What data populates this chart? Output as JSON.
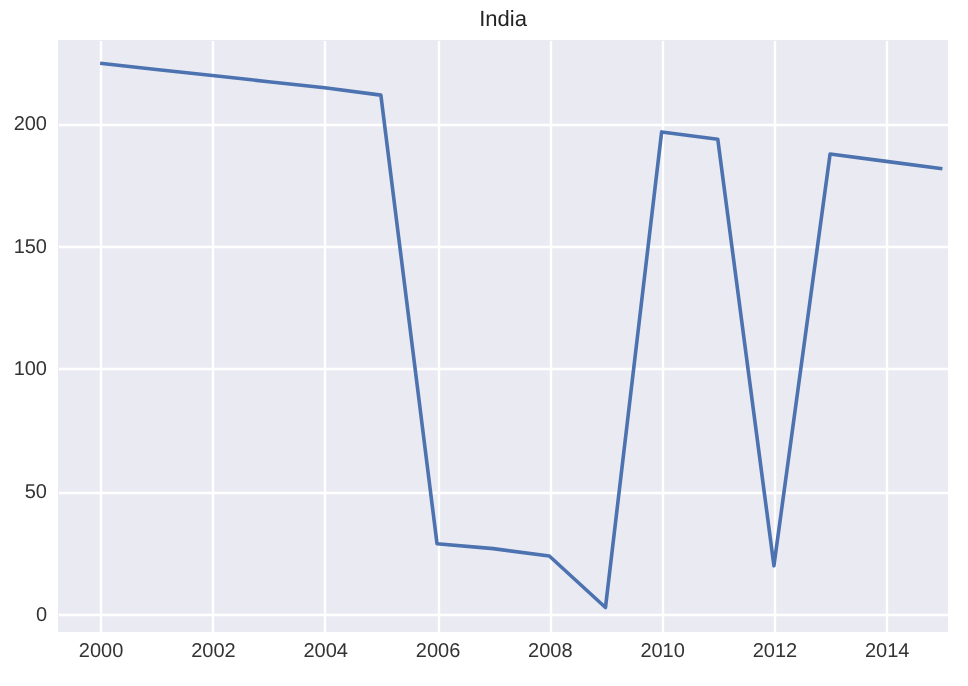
{
  "chart_data": {
    "type": "line",
    "title": "India",
    "x": [
      2000,
      2001,
      2002,
      2003,
      2004,
      2005,
      2006,
      2007,
      2008,
      2009,
      2010,
      2011,
      2012,
      2013,
      2014,
      2015
    ],
    "series": [
      {
        "color": "#4c72b0",
        "values": [
          224.5,
          222,
          219.5,
          217,
          214.5,
          211.5,
          28.5,
          26.5,
          23.5,
          2.5,
          196.5,
          193.5,
          19.5,
          187.5,
          184.5,
          181.5
        ]
      }
    ],
    "xlim": [
      1999.25,
      2015.1
    ],
    "xticks": [
      2000,
      2002,
      2004,
      2006,
      2008,
      2010,
      2012,
      2014
    ],
    "ylim": [
      -7.5,
      234
    ],
    "yticks": [
      0,
      50,
      100,
      150,
      200
    ],
    "grid": true
  }
}
